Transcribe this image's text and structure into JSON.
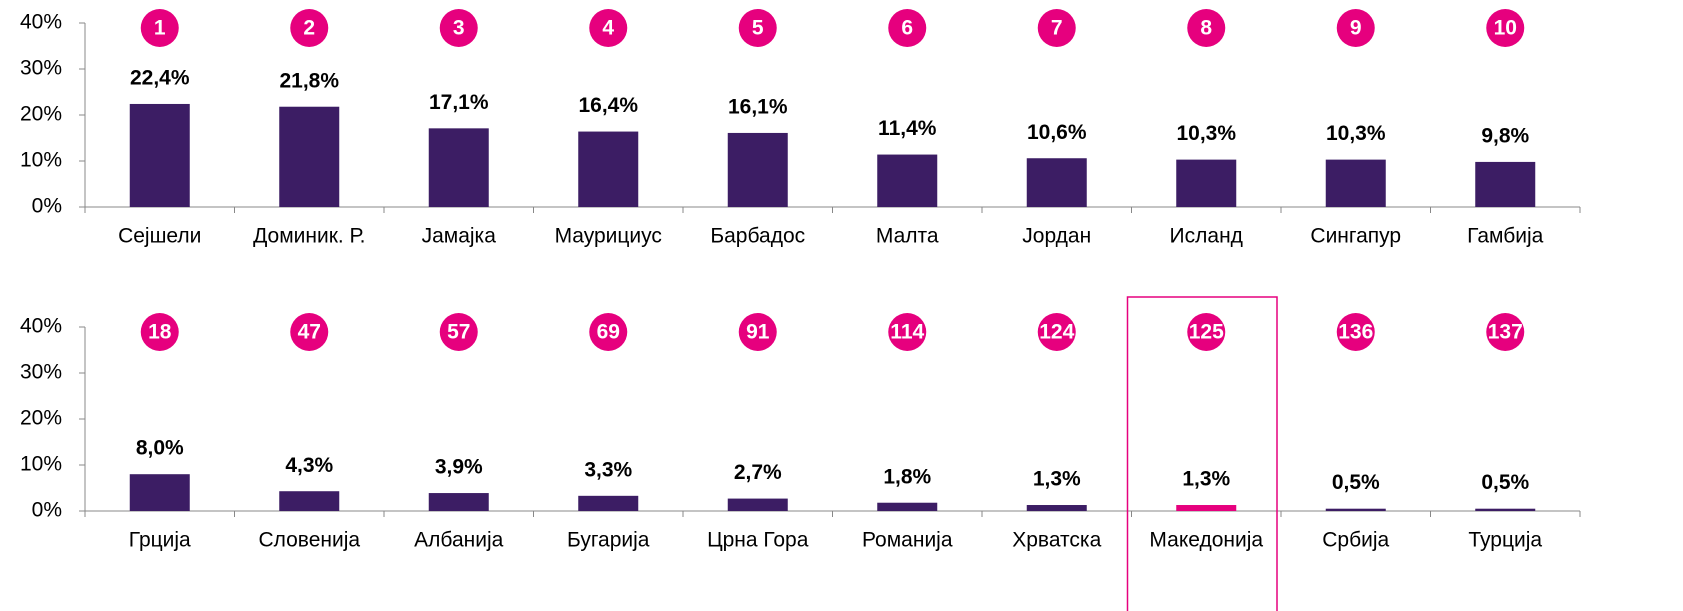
{
  "chart_data": [
    {
      "type": "bar",
      "categories": [
        "Сејшели",
        "Доминик. Р.",
        "Јамајка",
        "Маурициус",
        "Барбадос",
        "Малта",
        "Јордан",
        "Исланд",
        "Сингапур",
        "Гамбија"
      ],
      "ranks": [
        1,
        2,
        3,
        4,
        5,
        6,
        7,
        8,
        9,
        10
      ],
      "values": [
        22.4,
        21.8,
        17.1,
        16.4,
        16.1,
        11.4,
        10.6,
        10.3,
        10.3,
        9.8
      ],
      "value_labels": [
        "22,4%",
        "21,8%",
        "17,1%",
        "16,4%",
        "16,1%",
        "11,4%",
        "10,6%",
        "10,3%",
        "10,3%",
        "9,8%"
      ],
      "colors": [
        "#3c1d64",
        "#3c1d64",
        "#3c1d64",
        "#3c1d64",
        "#3c1d64",
        "#3c1d64",
        "#3c1d64",
        "#3c1d64",
        "#3c1d64",
        "#3c1d64"
      ],
      "ylim": [
        0,
        40
      ],
      "yticks": [
        {
          "value": 0,
          "label": "0%"
        },
        {
          "value": 10,
          "label": "10%"
        },
        {
          "value": 20,
          "label": "20%"
        },
        {
          "value": 30,
          "label": "30%"
        },
        {
          "value": 40,
          "label": "40%"
        }
      ]
    },
    {
      "type": "bar",
      "categories": [
        "Грција",
        "Словенија",
        "Албанија",
        "Бугарија",
        "Црна Гора",
        "Романија",
        "Хрватска",
        "Македонија",
        "Србија",
        "Турција"
      ],
      "ranks": [
        18,
        47,
        57,
        69,
        91,
        114,
        124,
        125,
        136,
        137
      ],
      "values": [
        8.0,
        4.3,
        3.9,
        3.3,
        2.7,
        1.8,
        1.3,
        1.3,
        0.5,
        0.5
      ],
      "value_labels": [
        "8,0%",
        "4,3%",
        "3,9%",
        "3,3%",
        "2,7%",
        "1,8%",
        "1,3%",
        "1,3%",
        "0,5%",
        "0,5%"
      ],
      "colors": [
        "#3c1d64",
        "#3c1d64",
        "#3c1d64",
        "#3c1d64",
        "#3c1d64",
        "#3c1d64",
        "#3c1d64",
        "#e6007e",
        "#3c1d64",
        "#3c1d64"
      ],
      "ylim": [
        0,
        40
      ],
      "yticks": [
        {
          "value": 0,
          "label": "0%"
        },
        {
          "value": 10,
          "label": "10%"
        },
        {
          "value": 20,
          "label": "20%"
        },
        {
          "value": 30,
          "label": "30%"
        },
        {
          "value": 40,
          "label": "40%"
        }
      ]
    }
  ]
}
